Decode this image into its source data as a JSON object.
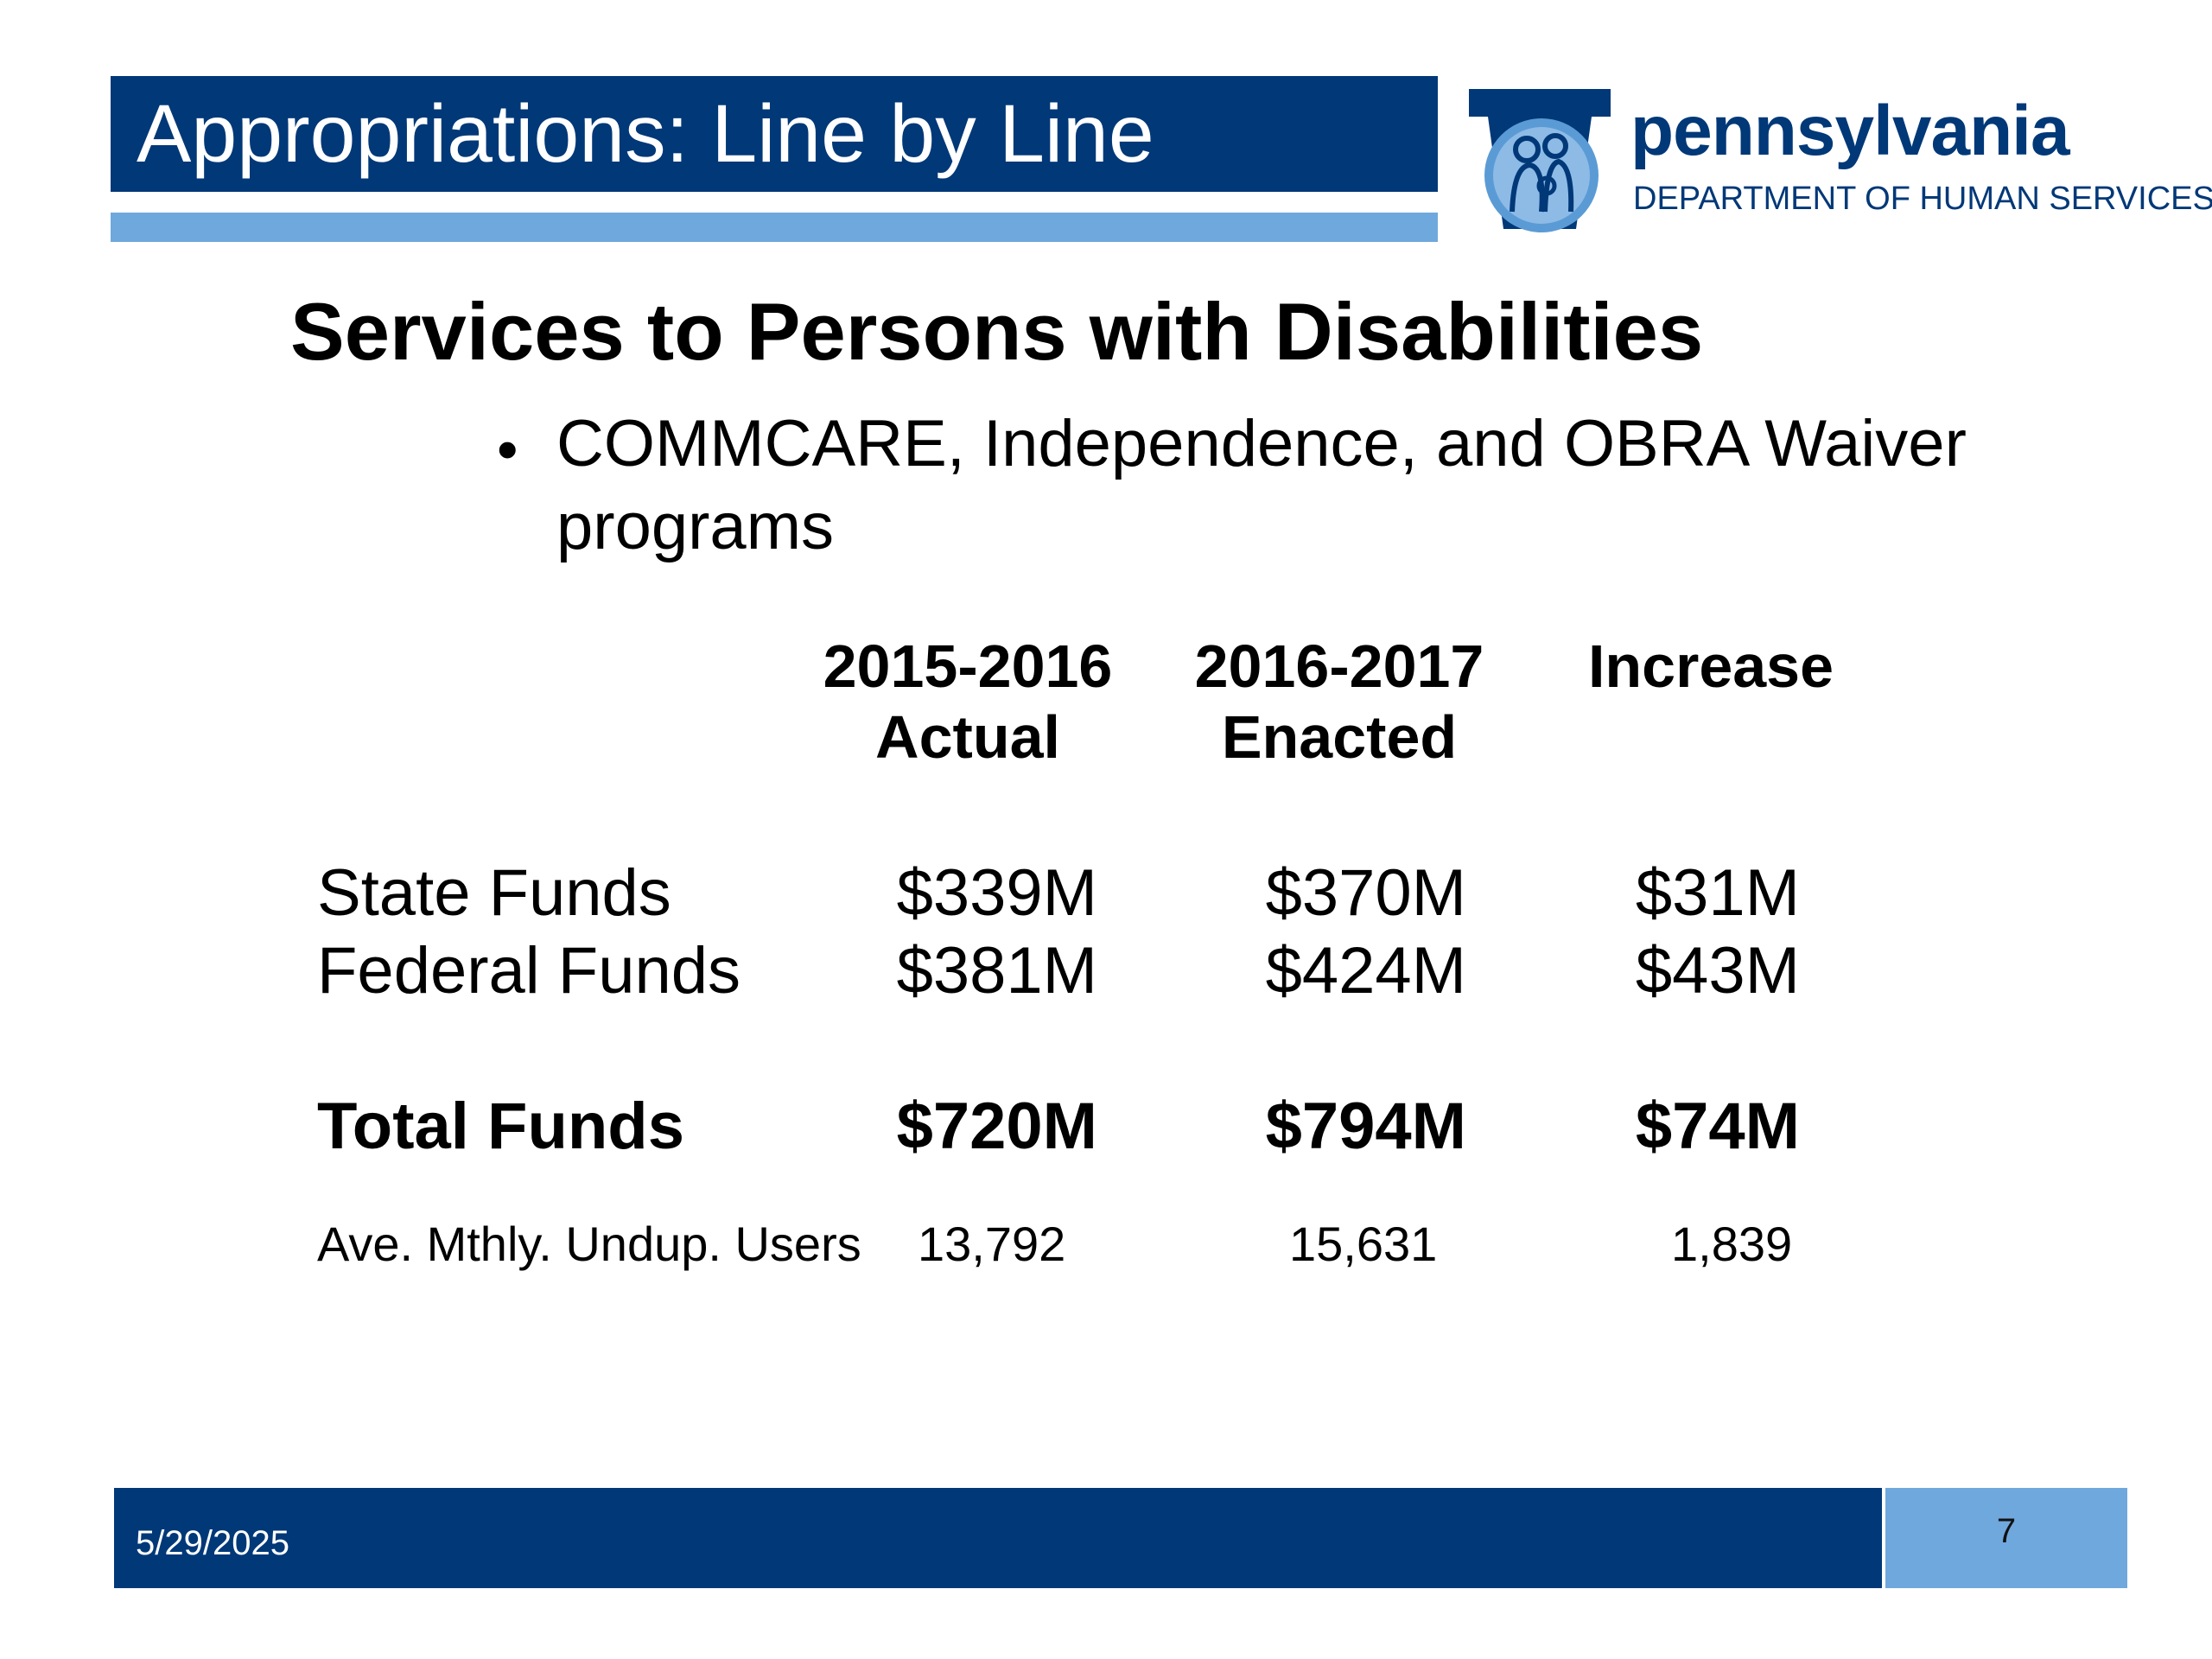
{
  "slide": {
    "title": "Appropriations: Line by Line",
    "heading": "Services to Persons with Disabilities",
    "bullet": "COMMCARE, Independence, and OBRA Waiver programs"
  },
  "logo": {
    "wordmark": "pennsylvania",
    "department": "DEPARTMENT OF HUMAN SERVICES"
  },
  "table": {
    "columns": [
      {
        "line1": "2015-2016",
        "line2": "Actual"
      },
      {
        "line1": "2016-2017",
        "line2": "Enacted"
      },
      {
        "line1": "Increase",
        "line2": ""
      }
    ],
    "rows": [
      {
        "label": "State Funds",
        "values": [
          "$339M",
          "$370M",
          "$31M"
        ]
      },
      {
        "label": "Federal Funds",
        "values": [
          "$381M",
          "$424M",
          "$43M"
        ]
      },
      {
        "label": "Total Funds",
        "values": [
          "$720M",
          "$794M",
          "$74M"
        ]
      },
      {
        "label": "Ave. Mthly. Undup. Users",
        "values": [
          "13,792",
          "15,631",
          "1,839"
        ]
      }
    ]
  },
  "footer": {
    "date": "5/29/2025",
    "page": "7"
  },
  "colors": {
    "navy": "#003878",
    "light_blue": "#6fa8dc"
  }
}
